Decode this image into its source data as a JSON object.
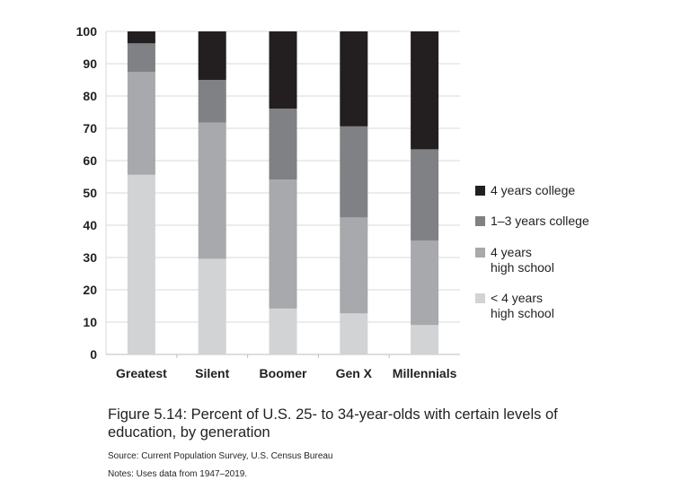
{
  "chart_data": {
    "type": "bar",
    "stacked": true,
    "title": "",
    "xlabel": "",
    "ylabel": "",
    "ylim": [
      0,
      100
    ],
    "yticks": [
      0,
      10,
      20,
      30,
      40,
      50,
      60,
      70,
      80,
      90,
      100
    ],
    "grid": true,
    "legend_position": "right",
    "categories": [
      "Greatest",
      "Silent",
      "Boomer",
      "Gen X",
      "Millennials"
    ],
    "series": [
      {
        "name": "< 4 years\nhigh school",
        "color": "#d1d3d4",
        "values": [
          55.6,
          29.6,
          14.2,
          12.7,
          9.1
        ]
      },
      {
        "name": "4 years\nhigh school",
        "color": "#a7a9ac",
        "values": [
          31.9,
          42.2,
          39.9,
          29.7,
          26.1
        ]
      },
      {
        "name": "1–3 years college",
        "color": "#808184",
        "values": [
          8.8,
          13.2,
          22.0,
          28.2,
          28.3
        ]
      },
      {
        "name": "4 years college",
        "color": "#231f20",
        "values": [
          3.7,
          15.0,
          23.9,
          29.4,
          36.5
        ]
      }
    ]
  },
  "caption": "Figure 5.14: Percent of U.S. 25- to 34-year-olds with certain levels of education, by generation",
  "source": "Source: Current Population Survey, U.S. Census Bureau",
  "notes": "Notes: Uses data from 1947–2019."
}
